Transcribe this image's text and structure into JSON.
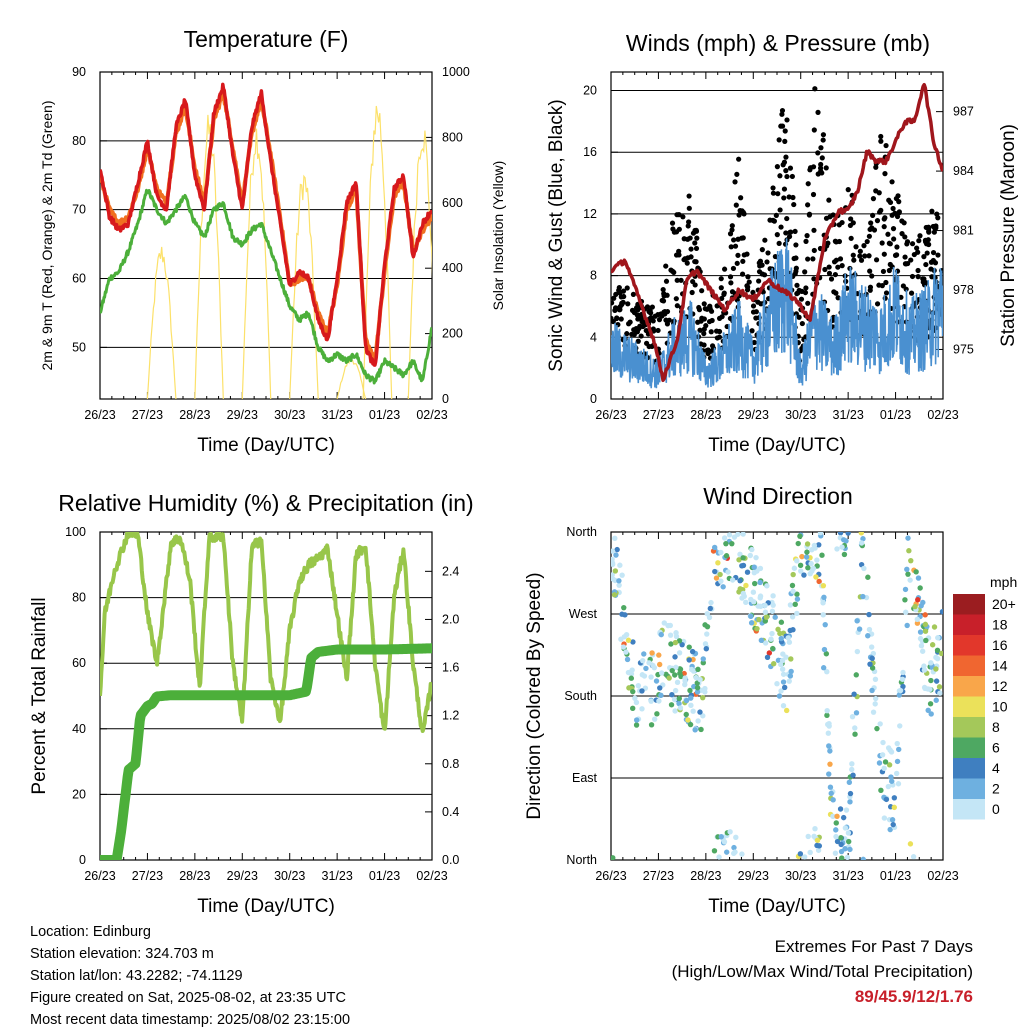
{
  "chart_data": [
    {
      "type": "line",
      "title": "Temperature (F)",
      "xlabel": "Time (Day/UTC)",
      "ylabel": "2m & 9m T (Red, Orange) & 2m Td (Green)",
      "y2label": "Solar Insolation (Yellow)",
      "x_ticks": [
        "26/23",
        "27/23",
        "28/23",
        "29/23",
        "30/23",
        "31/23",
        "01/23",
        "02/23"
      ],
      "ylim": [
        42.5,
        90
      ],
      "y_ticks": [
        50,
        60,
        70,
        80,
        90
      ],
      "y2lim": [
        0,
        1000
      ],
      "y2_ticks": [
        0,
        200,
        400,
        600,
        800,
        1000
      ],
      "grid": "horizontal",
      "series": [
        {
          "name": "2m T",
          "color": "#d7191c",
          "x": [
            0,
            0.2,
            0.4,
            0.6,
            0.8,
            1.0,
            1.2,
            1.4,
            1.6,
            1.8,
            2.0,
            2.2,
            2.4,
            2.6,
            2.8,
            3.0,
            3.2,
            3.4,
            3.6,
            3.8,
            4.0,
            4.2,
            4.4,
            4.6,
            4.8,
            5.0,
            5.2,
            5.4,
            5.6,
            5.8,
            6.0,
            6.2,
            6.4,
            6.6,
            6.8,
            7.0
          ],
          "values": [
            76,
            69,
            67,
            68,
            74,
            80,
            72,
            70,
            82,
            86,
            75,
            70,
            84,
            88,
            78,
            70,
            82,
            87,
            77,
            68,
            59,
            61,
            60,
            54,
            51,
            60,
            71,
            74,
            50,
            47,
            62,
            73,
            75,
            63,
            68,
            70
          ]
        },
        {
          "name": "9m T",
          "color": "#f07020",
          "x": [
            0,
            0.2,
            0.4,
            0.6,
            0.8,
            1.0,
            1.2,
            1.4,
            1.6,
            1.8,
            2.0,
            2.2,
            2.4,
            2.6,
            2.8,
            3.0,
            3.2,
            3.4,
            3.6,
            3.8,
            4.0,
            4.2,
            4.4,
            4.6,
            4.8,
            5.0,
            5.2,
            5.4,
            5.6,
            5.8,
            6.0,
            6.2,
            6.4,
            6.6,
            6.8,
            7.0
          ],
          "values": [
            75,
            70,
            68,
            69,
            73,
            79,
            73,
            71,
            81,
            85,
            76,
            71,
            83,
            87,
            79,
            71,
            81,
            86,
            78,
            69,
            59,
            60,
            60,
            55,
            52,
            59,
            70,
            73,
            51,
            48,
            61,
            72,
            74,
            64,
            67,
            69
          ]
        },
        {
          "name": "2m Td",
          "color": "#4caf3a",
          "x": [
            0,
            0.2,
            0.4,
            0.6,
            0.8,
            1.0,
            1.2,
            1.4,
            1.6,
            1.8,
            2.0,
            2.2,
            2.4,
            2.6,
            2.8,
            3.0,
            3.2,
            3.4,
            3.6,
            3.8,
            4.0,
            4.2,
            4.4,
            4.6,
            4.8,
            5.0,
            5.2,
            5.4,
            5.6,
            5.8,
            6.0,
            6.2,
            6.4,
            6.6,
            6.8,
            7.0
          ],
          "values": [
            55,
            60,
            61,
            64,
            68,
            73,
            70,
            68,
            70,
            72,
            68,
            66,
            70,
            71,
            66,
            65,
            67,
            68,
            64,
            60,
            56,
            54,
            55,
            50,
            48,
            49,
            48,
            49,
            46,
            45,
            48,
            47,
            46,
            48,
            45,
            53
          ]
        },
        {
          "name": "Solar Insolation",
          "color": "#fce16a",
          "axis": "y2",
          "peaks": [
            [
              1.3,
              480
            ],
            [
              2.3,
              880
            ],
            [
              3.3,
              870
            ],
            [
              4.3,
              720
            ],
            [
              5.3,
              130
            ],
            [
              5.85,
              950
            ],
            [
              6.8,
              880
            ]
          ]
        }
      ]
    },
    {
      "type": "scatter",
      "title": "Winds (mph) & Pressure (mb)",
      "xlabel": "Time (Day/UTC)",
      "ylabel": "Sonic Wind & Gust (Blue, Black)",
      "y2label": "Station Pressure (Maroon)",
      "x_ticks": [
        "26/23",
        "27/23",
        "28/23",
        "29/23",
        "30/23",
        "31/23",
        "01/23",
        "02/23"
      ],
      "ylim": [
        0,
        21.2
      ],
      "y_ticks": [
        0,
        4,
        8,
        12,
        16,
        20
      ],
      "y2lim": [
        972.5,
        989
      ],
      "y2_ticks": [
        975,
        978,
        981,
        984,
        987
      ],
      "grid": "horizontal",
      "series": [
        {
          "name": "Sonic Wind",
          "color": "#4a90d0",
          "x": [
            0,
            0.5,
            1.0,
            1.3,
            1.7,
            2.0,
            2.3,
            2.7,
            3.0,
            3.3,
            3.7,
            4.0,
            4.3,
            4.7,
            5.0,
            5.3,
            5.7,
            6.0,
            6.3,
            6.7,
            7.0
          ],
          "values": [
            4,
            3,
            2,
            4,
            5,
            2,
            3,
            5,
            3,
            6,
            9,
            2,
            6,
            4,
            7,
            6,
            5,
            7,
            5,
            6,
            8
          ]
        },
        {
          "name": "Gust",
          "color": "#000000",
          "x": [
            0,
            0.5,
            1.0,
            1.3,
            1.7,
            2.0,
            2.3,
            2.7,
            3.0,
            3.3,
            3.7,
            4.0,
            4.3,
            4.7,
            5.0,
            5.3,
            5.7,
            6.0,
            6.3,
            6.7,
            7.0
          ],
          "values": [
            7,
            6,
            5,
            10,
            12,
            5,
            7,
            14,
            6,
            10,
            18,
            5,
            19,
            10,
            13,
            8,
            16,
            12,
            9,
            10,
            13
          ]
        },
        {
          "name": "Station Pressure",
          "color": "#a0161c",
          "axis": "y2",
          "x": [
            0,
            0.3,
            0.6,
            0.9,
            1.1,
            1.4,
            1.6,
            1.8,
            2.1,
            2.4,
            2.7,
            3.0,
            3.3,
            3.6,
            3.9,
            4.2,
            4.5,
            4.8,
            5.0,
            5.2,
            5.4,
            5.6,
            5.8,
            6.0,
            6.2,
            6.4,
            6.6,
            6.8,
            7.0
          ],
          "values": [
            979,
            979.5,
            977.5,
            975.5,
            973.5,
            975.5,
            978.5,
            979,
            978,
            977,
            978,
            977.5,
            978.5,
            978,
            977.5,
            976.5,
            980.5,
            982,
            982,
            983,
            985,
            984.5,
            984.5,
            985.5,
            986.5,
            986.5,
            988.5,
            985.5,
            984
          ]
        }
      ]
    },
    {
      "type": "line",
      "title": "Relative Humidity (%) & Precipitation (in)",
      "xlabel": "Time (Day/UTC)",
      "ylabel": "Percent & Total Rainfall",
      "x_ticks": [
        "26/23",
        "27/23",
        "28/23",
        "29/23",
        "30/23",
        "31/23",
        "01/23",
        "02/23"
      ],
      "ylim": [
        0,
        100
      ],
      "y_ticks": [
        0,
        20,
        40,
        60,
        80,
        100
      ],
      "y2lim": [
        0,
        2.727
      ],
      "y2_ticks": [
        "0.0",
        "0.4",
        "0.8",
        "1.2",
        "1.6",
        "2.0",
        "2.4"
      ],
      "grid": "horizontal",
      "series": [
        {
          "name": "Relative Humidity",
          "color": "#98c64a",
          "x": [
            0,
            0.1,
            0.3,
            0.6,
            0.8,
            1.0,
            1.2,
            1.5,
            1.7,
            1.9,
            2.1,
            2.3,
            2.6,
            2.8,
            3.0,
            3.2,
            3.4,
            3.6,
            3.8,
            4.0,
            4.2,
            4.4,
            4.6,
            4.8,
            5.0,
            5.2,
            5.4,
            5.6,
            5.8,
            6.0,
            6.2,
            6.4,
            6.6,
            6.8,
            7.0
          ],
          "values": [
            50,
            75,
            88,
            100,
            99,
            75,
            60,
            97,
            98,
            85,
            52,
            98,
            99,
            60,
            42,
            95,
            98,
            55,
            42,
            70,
            85,
            90,
            92,
            95,
            75,
            55,
            93,
            96,
            60,
            38,
            80,
            95,
            60,
            38,
            55
          ]
        },
        {
          "name": "Total Rainfall",
          "color": "#4caf3a",
          "axis": "y2",
          "x": [
            0,
            0.35,
            0.45,
            0.6,
            0.75,
            0.85,
            1.0,
            1.1,
            1.2,
            1.5,
            2.0,
            3.0,
            4.0,
            4.35,
            4.45,
            4.6,
            5.0,
            6.0,
            7.0
          ],
          "values": [
            0,
            0,
            0.25,
            0.75,
            0.8,
            1.2,
            1.28,
            1.3,
            1.36,
            1.37,
            1.37,
            1.37,
            1.37,
            1.4,
            1.68,
            1.73,
            1.75,
            1.75,
            1.76
          ]
        }
      ]
    },
    {
      "type": "scatter",
      "title": "Wind Direction",
      "xlabel": "Time (Day/UTC)",
      "ylabel": "Direction (Colored By Speed)",
      "x_ticks": [
        "26/23",
        "27/23",
        "28/23",
        "29/23",
        "30/23",
        "31/23",
        "01/23",
        "02/23"
      ],
      "y_ticks": [
        "North",
        "East",
        "South",
        "West",
        "North"
      ],
      "ylim": [
        0,
        360
      ],
      "grid": "horizontal",
      "legend": {
        "title": "mph",
        "placement": "right",
        "labels": [
          "20+",
          "18",
          "16",
          "14",
          "12",
          "10",
          "8",
          "6",
          "4",
          "2",
          "0"
        ],
        "colors": [
          "#9b1d20",
          "#c8202a",
          "#e2372b",
          "#f06630",
          "#f9a64a",
          "#ebe15a",
          "#a4c85a",
          "#4ea862",
          "#3f7fc0",
          "#6eb0e0",
          "#c4e6f6"
        ]
      },
      "series": [
        {
          "name": "Wind Direction",
          "x": [
            0.1,
            0.4,
            0.8,
            1.1,
            1.5,
            1.9,
            2.2,
            2.6,
            3.0,
            3.4,
            3.7,
            4.0,
            4.4,
            4.7,
            5.0,
            5.3,
            5.7,
            6.0,
            6.3,
            6.7,
            7.0
          ],
          "values": [
            330,
            200,
            180,
            220,
            200,
            180,
            340,
            350,
            300,
            250,
            200,
            350,
            350,
            10,
            15,
            340,
            90,
            70,
            350,
            200,
            230
          ]
        }
      ]
    }
  ],
  "footer": {
    "location": "Location: Edinburg",
    "elevation": "Station elevation: 324.703 m",
    "latlon": "Station lat/lon: 43.2282; -74.1129",
    "created": "Figure created on Sat, 2025-08-02, at 23:35 UTC",
    "recent": "Most recent data timestamp: 2025/08/02 23:15:00"
  },
  "extremes": {
    "title": "Extremes For Past 7 Days",
    "subtitle": "(High/Low/Max Wind/Total Precipitation)",
    "values": "89/45.9/12/1.76"
  }
}
